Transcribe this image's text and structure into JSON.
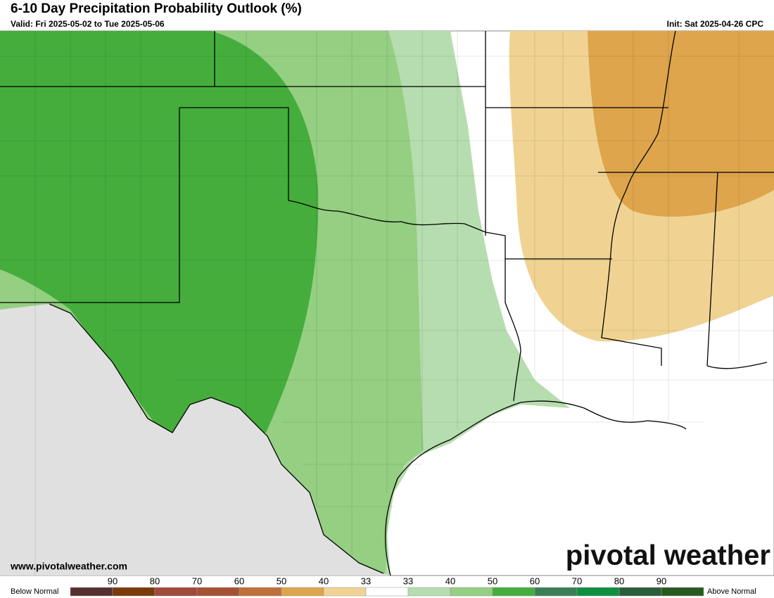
{
  "header": {
    "title": "6-10 Day Precipitation Probability Outlook (%)",
    "valid": "Valid: Fri 2025-05-02 to Tue 2025-05-06",
    "init": "Init: Sat 2025-04-26 CPC"
  },
  "footer": {
    "website": "www.pivotalweather.com",
    "brand": "pivotal weather"
  },
  "legend": {
    "below_label": "Below Normal",
    "above_label": "Above Normal",
    "labels": [
      90,
      80,
      70,
      60,
      50,
      40,
      33,
      33,
      40,
      50,
      60,
      70,
      80,
      90
    ],
    "colors": [
      "#56302f",
      "#7b3a0a",
      "#a04a3c",
      "#a55232",
      "#c0703a",
      "#dea54c",
      "#f0d393",
      "#ffffff",
      "#b6ddaf",
      "#94cf82",
      "#45ad3c",
      "#3a7f55",
      "#0e9040",
      "#2a5e3a",
      "#275a1f"
    ]
  }
}
